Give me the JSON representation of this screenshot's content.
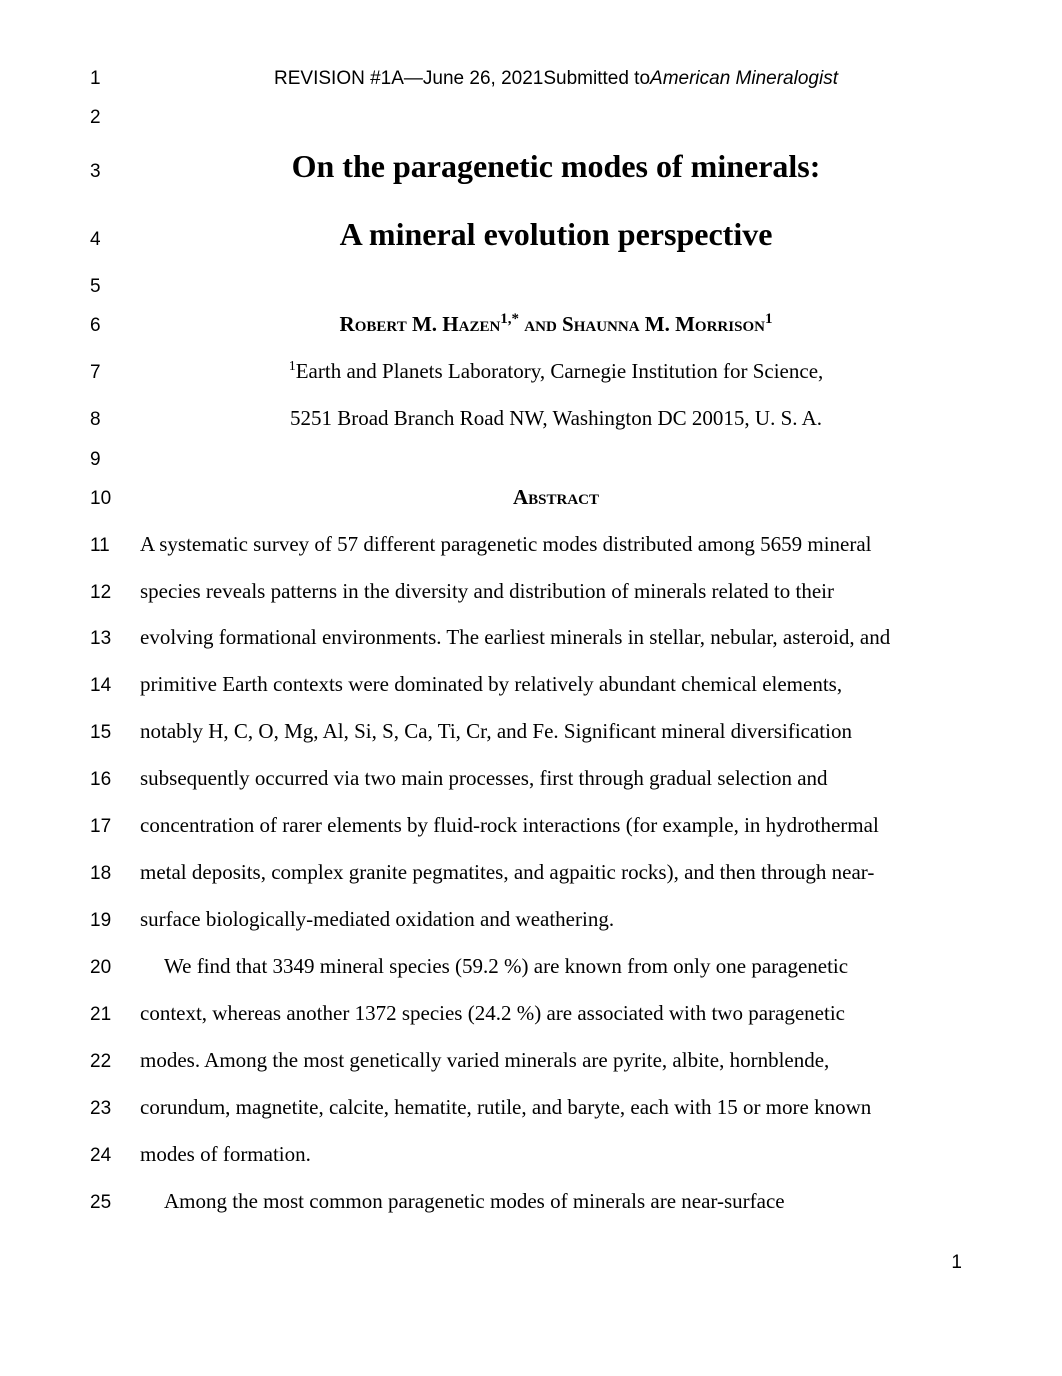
{
  "header": {
    "revision": "REVISION #1A—June 26, 2021Submitted to",
    "journal": "American Mineralogist"
  },
  "title_line1": "On the paragenetic modes of minerals:",
  "title_line2": "A mineral evolution perspective",
  "authors": {
    "a1_name": "Robert M. Hazen",
    "a1_sup": "1,*",
    "and": " and ",
    "a2_name": "Shaunna M. Morrison",
    "a2_sup": "1"
  },
  "affil": {
    "sup": "1",
    "line1": "Earth and Planets Laboratory, Carnegie Institution for Science,",
    "line2": "5251 Broad Branch Road NW, Washington DC 20015, U. S. A."
  },
  "abstract_heading": "Abstract",
  "body": {
    "l11": "A systematic survey of 57 different paragenetic modes distributed among 5659 mineral",
    "l12": "species reveals patterns in the diversity and distribution of minerals related to their",
    "l13": "evolving formational environments. The earliest minerals in stellar, nebular, asteroid, and",
    "l14": "primitive Earth contexts were dominated by relatively abundant chemical elements,",
    "l15": "notably H, C, O, Mg, Al, Si, S, Ca, Ti, Cr, and Fe. Significant mineral diversification",
    "l16": "subsequently occurred via two main processes, first through gradual selection and",
    "l17": "concentration of rarer elements by fluid-rock interactions (for example, in hydrothermal",
    "l18": "metal deposits, complex granite pegmatites, and agpaitic rocks), and then through near-",
    "l19": "surface biologically-mediated oxidation and weathering.",
    "l20": "We find that 3349 mineral species (59.2 %) are known from only one paragenetic",
    "l21": "context, whereas another 1372 species (24.2 %) are associated with two paragenetic",
    "l22": "modes. Among the most genetically varied minerals are pyrite, albite, hornblende,",
    "l23": "corundum, magnetite, calcite, hematite, rutile, and baryte, each with 15 or more known",
    "l24": "modes of formation.",
    "l25": "Among the most common paragenetic modes of minerals are near-surface"
  },
  "linenos": {
    "l1": "1",
    "l2": "2",
    "l3": "3",
    "l4": "4",
    "l5": "5",
    "l6": "6",
    "l7": "7",
    "l8": "8",
    "l9": "9",
    "l10": "10",
    "l11": "11",
    "l12": "12",
    "l13": "13",
    "l14": "14",
    "l15": "15",
    "l16": "16",
    "l17": "17",
    "l18": "18",
    "l19": "19",
    "l20": "20",
    "l21": "21",
    "l22": "22",
    "l23": "23",
    "l24": "24",
    "l25": "25"
  },
  "page_number": "1"
}
